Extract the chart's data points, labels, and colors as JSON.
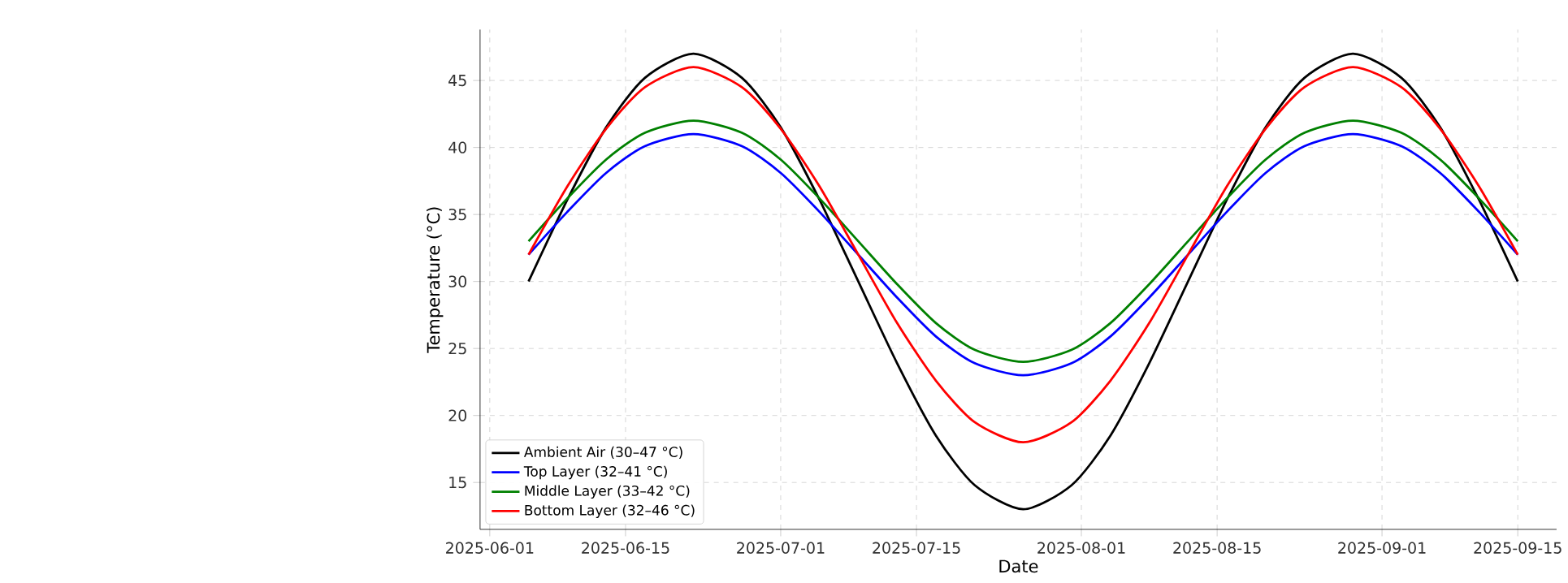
{
  "chart_data": {
    "type": "line",
    "xlabel": "Date",
    "ylabel": "Temperature (°C)",
    "x": [
      "2025-06-05",
      "2025-06-09",
      "2025-06-13",
      "2025-06-17",
      "2025-06-22",
      "2025-06-27",
      "2025-07-01",
      "2025-07-05",
      "2025-07-09",
      "2025-07-13",
      "2025-07-17",
      "2025-07-21",
      "2025-07-26",
      "2025-07-31",
      "2025-08-04",
      "2025-08-08",
      "2025-08-12",
      "2025-08-16",
      "2025-08-20",
      "2025-08-24",
      "2025-08-29",
      "2025-09-03",
      "2025-09-07",
      "2025-09-11",
      "2025-09-15"
    ],
    "series": [
      {
        "name": "Ambient Air (30–47 °C)",
        "color": "#000000",
        "values": [
          30,
          36.1,
          41.5,
          45.2,
          47,
          45.2,
          41.5,
          36.1,
          30,
          23.9,
          18.5,
          14.8,
          13,
          14.8,
          18.5,
          23.9,
          30,
          36.1,
          41.5,
          45.2,
          47,
          45.2,
          41.5,
          36.1,
          30
        ]
      },
      {
        "name": "Top Layer (32–41 °C)",
        "color": "#0000ff",
        "values": [
          32,
          35.2,
          38.1,
          40.1,
          41,
          40.1,
          38.1,
          35.2,
          32,
          28.8,
          25.9,
          23.9,
          23,
          23.9,
          25.9,
          28.8,
          32,
          35.2,
          38.1,
          40.1,
          41,
          40.1,
          38.1,
          35.2,
          32
        ]
      },
      {
        "name": "Middle Layer (33–42 °C)",
        "color": "#008000",
        "values": [
          33,
          36.2,
          39.1,
          41.1,
          42,
          41.1,
          39.1,
          36.2,
          33,
          29.8,
          26.9,
          24.9,
          24,
          24.9,
          26.9,
          29.8,
          33,
          36.2,
          39.1,
          41.1,
          42,
          41.1,
          39.1,
          36.2,
          33
        ]
      },
      {
        "name": "Bottom Layer (32–46 °C)",
        "color": "#ff0000",
        "values": [
          32,
          37.1,
          41.4,
          44.5,
          46,
          44.5,
          41.4,
          37.1,
          32,
          26.9,
          22.6,
          19.5,
          18,
          19.5,
          22.6,
          26.9,
          32,
          37.1,
          41.4,
          44.5,
          46,
          44.5,
          41.4,
          37.1,
          32
        ]
      }
    ],
    "xlim": [
      "2025-05-31",
      "2025-09-19"
    ],
    "xticks": [
      "2025-06-01",
      "2025-06-15",
      "2025-07-01",
      "2025-07-15",
      "2025-08-01",
      "2025-08-15",
      "2025-09-01",
      "2025-09-15"
    ],
    "ylim": [
      11.5,
      48.8
    ],
    "yticks": [
      15,
      20,
      25,
      30,
      35,
      40,
      45
    ],
    "grid": true,
    "legend": "bottom left"
  }
}
